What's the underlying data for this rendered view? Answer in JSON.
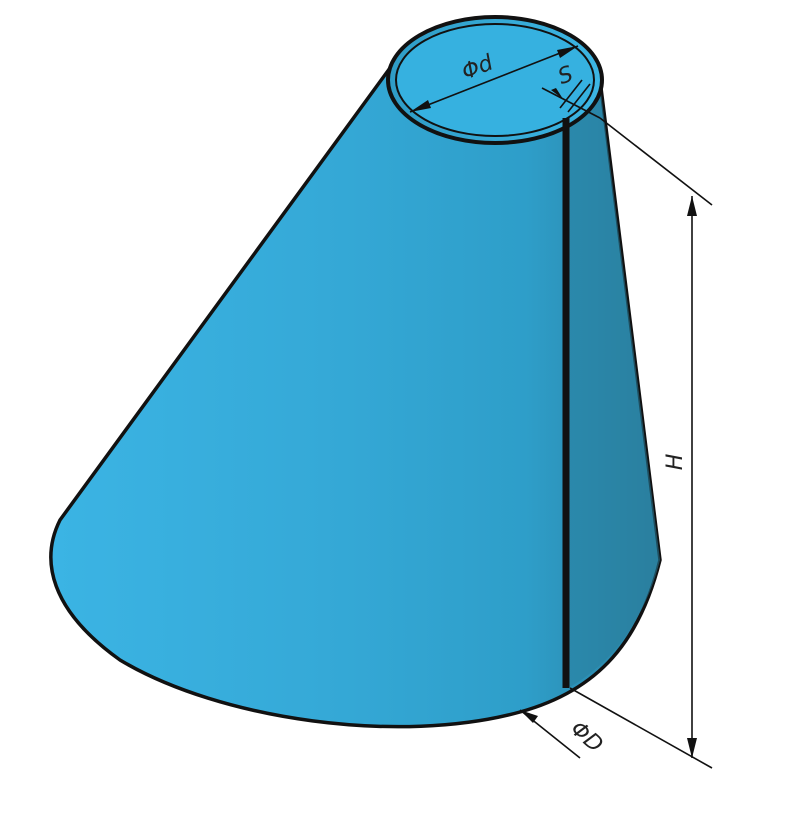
{
  "diagram": {
    "colors": {
      "cone_light": "#3bb4e4",
      "cone_mid": "#2e9ec9",
      "cone_dark": "#2a7f9f",
      "outline": "#111111",
      "background": "#ffffff"
    },
    "labels": {
      "top_diameter": "Φd",
      "thickness": "S",
      "height": "H",
      "base_diameter": "ΦD"
    }
  }
}
